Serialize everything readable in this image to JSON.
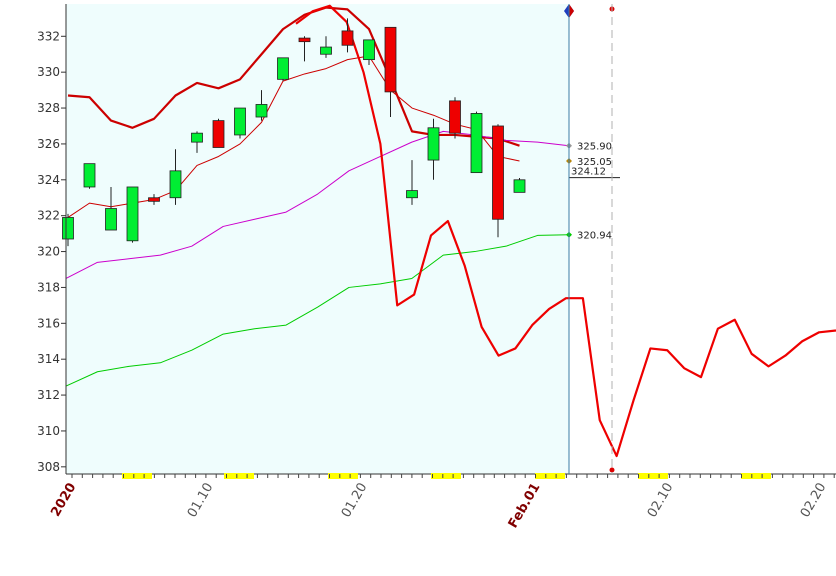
{
  "chart_data": {
    "type": "candlestick",
    "title": "",
    "xlabel": "",
    "ylabel": "",
    "ylim": [
      307.6,
      333.8
    ],
    "y_ticks": [
      308,
      310,
      312,
      314,
      316,
      318,
      320,
      322,
      324,
      326,
      328,
      330,
      332
    ],
    "x_tick_labels": [
      {
        "label": "2020",
        "major": true
      },
      {
        "label": "01.10",
        "major": false
      },
      {
        "label": "01.20",
        "major": false
      },
      {
        "label": "Feb.01",
        "major": true
      },
      {
        "label": "02.10",
        "major": false
      },
      {
        "label": "02.20",
        "major": false
      }
    ],
    "candles": [
      {
        "o": 320.7,
        "h": 322.1,
        "l": 320.3,
        "c": 321.9
      },
      {
        "o": 323.6,
        "h": 324.9,
        "l": 323.5,
        "c": 324.9
      },
      {
        "o": 321.2,
        "h": 323.6,
        "l": 321.2,
        "c": 322.4
      },
      {
        "o": 320.6,
        "h": 323.6,
        "l": 320.5,
        "c": 323.6
      },
      {
        "o": 323.0,
        "h": 323.2,
        "l": 322.6,
        "c": 322.8
      },
      {
        "o": 323.0,
        "h": 325.7,
        "l": 322.6,
        "c": 324.5
      },
      {
        "o": 326.1,
        "h": 326.7,
        "l": 325.5,
        "c": 326.6
      },
      {
        "o": 327.3,
        "h": 327.4,
        "l": 325.8,
        "c": 325.8
      },
      {
        "o": 326.5,
        "h": 328.0,
        "l": 326.3,
        "c": 328.0
      },
      {
        "o": 327.5,
        "h": 329.0,
        "l": 327.3,
        "c": 328.2
      },
      {
        "o": 329.6,
        "h": 330.8,
        "l": 329.5,
        "c": 330.8
      },
      {
        "o": 331.9,
        "h": 332.0,
        "l": 330.6,
        "c": 331.7
      },
      {
        "o": 331.0,
        "h": 332.0,
        "l": 330.8,
        "c": 331.4
      },
      {
        "o": 332.3,
        "h": 333.0,
        "l": 331.1,
        "c": 331.5
      },
      {
        "o": 330.7,
        "h": 331.7,
        "l": 330.4,
        "c": 331.8
      },
      {
        "o": 332.5,
        "h": 332.5,
        "l": 327.5,
        "c": 328.9
      },
      {
        "o": 323.0,
        "h": 325.1,
        "l": 322.6,
        "c": 323.4
      },
      {
        "o": 325.1,
        "h": 327.4,
        "l": 324.0,
        "c": 326.9
      },
      {
        "o": 328.4,
        "h": 328.6,
        "l": 326.3,
        "c": 326.6
      },
      {
        "o": 324.4,
        "h": 327.8,
        "l": 324.4,
        "c": 327.7
      },
      {
        "o": 327.0,
        "h": 327.1,
        "l": 320.8,
        "c": 321.8
      },
      {
        "o": 323.3,
        "h": 324.1,
        "l": 323.3,
        "c": 324.0
      }
    ],
    "series": [
      {
        "role": "upper_band",
        "color": "#cc0000",
        "values": [
          328.7,
          328.6,
          327.3,
          326.9,
          327.4,
          328.7,
          329.4,
          329.1,
          329.6,
          331.0,
          332.4,
          333.2,
          333.6,
          333.5,
          332.4,
          329.6,
          326.7,
          326.5,
          326.5,
          326.4,
          326.3,
          325.9
        ]
      },
      {
        "role": "mid_band",
        "color": "#cc0000",
        "values": [
          321.9,
          322.7,
          322.5,
          322.7,
          322.9,
          323.4,
          324.8,
          325.3,
          326.0,
          327.2,
          329.5,
          329.9,
          330.2,
          330.7,
          330.9,
          329.0,
          328.0,
          327.6,
          327.1,
          326.8,
          325.3,
          325.05
        ]
      },
      {
        "role": "upper_line",
        "color": "#cc00cc",
        "values": [
          318.5,
          319.4,
          319.6,
          319.8,
          320.3,
          321.4,
          321.8,
          322.2,
          323.2,
          324.5,
          325.3,
          326.1,
          326.7,
          326.5,
          326.2,
          326.1,
          325.9
        ]
      },
      {
        "role": "lower_line",
        "color": "#00cc00",
        "values": [
          312.5,
          313.3,
          313.6,
          313.8,
          314.5,
          315.4,
          315.7,
          315.9,
          316.9,
          318.0,
          318.2,
          318.5,
          319.8,
          320.0,
          320.3,
          320.9,
          320.94
        ]
      },
      {
        "role": "projection",
        "color": "#ee0000",
        "values": [
          332.7,
          333.4,
          333.7,
          332.8,
          330.0,
          326.0,
          317.0,
          317.6,
          320.9,
          321.7,
          319.2,
          315.8,
          314.2,
          314.6,
          315.9,
          316.8,
          317.4,
          317.4,
          310.6,
          308.6,
          311.7,
          314.6,
          314.5,
          313.5,
          313.0,
          315.7,
          316.2,
          314.3,
          313.6,
          314.2,
          315.0,
          315.5,
          315.6
        ]
      }
    ],
    "value_labels": [
      "325.90",
      "325.05",
      "324.12",
      "320.94"
    ]
  }
}
